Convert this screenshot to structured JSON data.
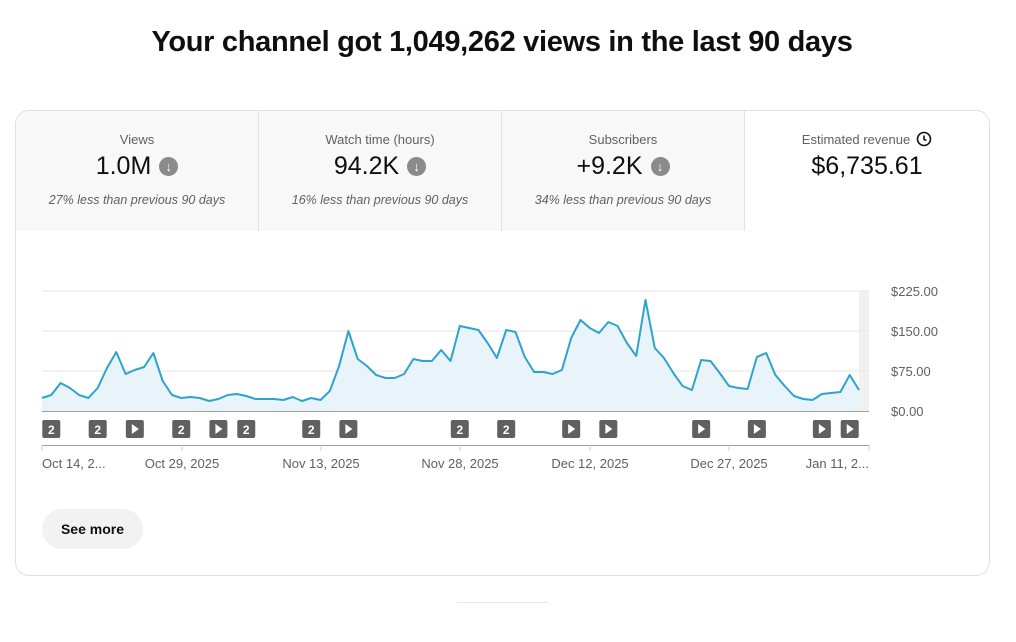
{
  "headline": "Your channel got 1,049,262 views in the last 90 days",
  "tabs": [
    {
      "label": "Views",
      "value": "1.0M",
      "trend_icon": "arrow-down-circle-icon",
      "comparison": "27% less than previous 90 days"
    },
    {
      "label": "Watch time (hours)",
      "value": "94.2K",
      "trend_icon": "arrow-down-circle-icon",
      "comparison": "16% less than previous 90 days"
    },
    {
      "label": "Subscribers",
      "value": "+9.2K",
      "trend_icon": "arrow-down-circle-icon",
      "comparison": "34% less than previous 90 days"
    },
    {
      "label": "Estimated revenue",
      "value": "$6,735.61",
      "info_icon": "clock-icon"
    }
  ],
  "see_more_label": "See more",
  "chart_data": {
    "type": "area",
    "title": "Estimated revenue",
    "x_start": "Oct 14, 2025",
    "x_tick_labels": [
      "Oct 14, 2...",
      "Oct 29, 2025",
      "Nov 13, 2025",
      "Nov 28, 2025",
      "Dec 12, 2025",
      "Dec 27, 2025",
      "Jan 11, 2..."
    ],
    "y_tick_labels": [
      "$225.00",
      "$150.00",
      "$75.00",
      "$0.00"
    ],
    "y_ticks": [
      225,
      150,
      75,
      0
    ],
    "ylim": [
      0,
      225
    ],
    "grid": true,
    "color": "#2ea3cd",
    "fill": "#e8f4fa",
    "values": [
      24.4,
      30,
      52.5,
      43.1,
      30,
      24.4,
      43.1,
      80.6,
      110.6,
      69.4,
      76.9,
      82.5,
      108.8,
      56.3,
      30,
      24.4,
      26.3,
      24.4,
      18.8,
      22.5,
      30,
      31.9,
      28.1,
      22.5,
      22.5,
      22.5,
      20.6,
      26.3,
      18.8,
      24.4,
      20.6,
      37.5,
      84.4,
      150,
      97.5,
      84.4,
      67.5,
      61.9,
      61.9,
      69.4,
      97.5,
      93.8,
      93.8,
      114.4,
      93.8,
      159.4,
      155.6,
      151.9,
      127.5,
      99.4,
      151.9,
      148.1,
      101.3,
      73.1,
      73.1,
      69.4,
      76.9,
      136.9,
      170.6,
      155.6,
      146.3,
      166.9,
      159.4,
      127.5,
      103.1,
      208.1,
      118.1,
      99.4,
      71.3,
      46.9,
      39.4,
      95.6,
      93.8,
      71.3,
      46.9,
      43.1,
      41.3,
      101.3,
      108.8,
      67.5,
      46.9,
      28.1,
      22.5,
      20.6,
      31.9,
      33.8,
      35.6,
      67.5,
      39.4
    ],
    "markers": [
      {
        "day": 1,
        "type": "count",
        "label": "2"
      },
      {
        "day": 6,
        "type": "count",
        "label": "2"
      },
      {
        "day": 10,
        "type": "play"
      },
      {
        "day": 15,
        "type": "count",
        "label": "2"
      },
      {
        "day": 19,
        "type": "play"
      },
      {
        "day": 22,
        "type": "count",
        "label": "2"
      },
      {
        "day": 29,
        "type": "count",
        "label": "2"
      },
      {
        "day": 33,
        "type": "play"
      },
      {
        "day": 45,
        "type": "count",
        "label": "2"
      },
      {
        "day": 50,
        "type": "count",
        "label": "2"
      },
      {
        "day": 57,
        "type": "play"
      },
      {
        "day": 61,
        "type": "play"
      },
      {
        "day": 71,
        "type": "play"
      },
      {
        "day": 77,
        "type": "play"
      },
      {
        "day": 84,
        "type": "play"
      },
      {
        "day": 87,
        "type": "play"
      }
    ]
  }
}
